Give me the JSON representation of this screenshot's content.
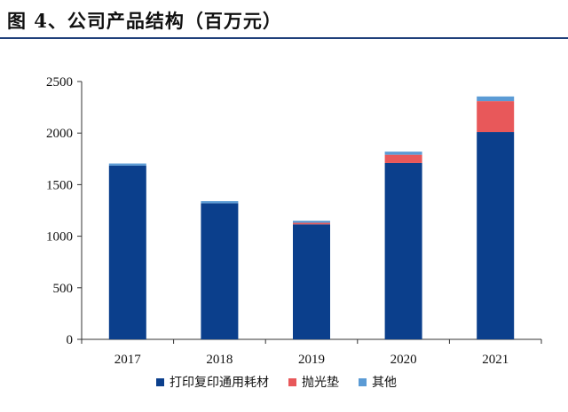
{
  "header": {
    "title": "图 4、公司产品结构（百万元）"
  },
  "chart_data": {
    "type": "bar",
    "stacked": true,
    "title": "图 4、公司产品结构（百万元）",
    "categories": [
      "2017",
      "2018",
      "2019",
      "2020",
      "2021"
    ],
    "series": [
      {
        "name": "打印复印通用耗材",
        "color": "#0b3f8c",
        "values": [
          1685,
          1320,
          1115,
          1710,
          2010
        ]
      },
      {
        "name": "抛光垫",
        "color": "#e8585a",
        "values": [
          0,
          0,
          15,
          80,
          300
        ]
      },
      {
        "name": "其他",
        "color": "#5b9bd5",
        "values": [
          20,
          20,
          20,
          30,
          45
        ]
      }
    ],
    "y_ticks": [
      "0",
      "500",
      "1000",
      "1500",
      "2000",
      "2500"
    ],
    "ylim": [
      0,
      2500
    ],
    "xlabel": "",
    "ylabel": "",
    "grid": false,
    "legend_position": "bottom"
  }
}
